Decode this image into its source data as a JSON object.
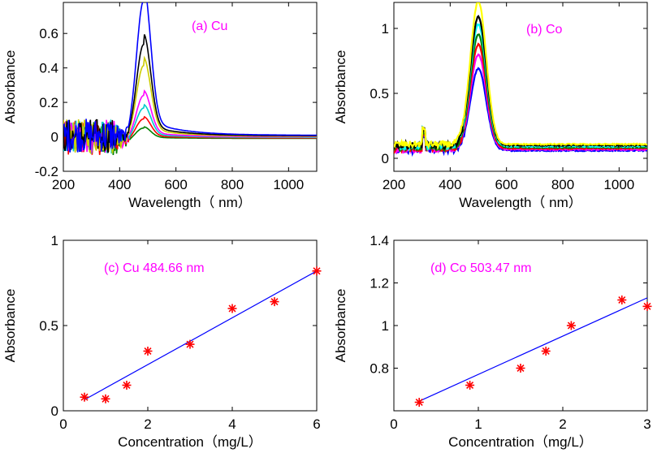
{
  "figure": {
    "panels": [
      "panel_a",
      "panel_b",
      "panel_c",
      "panel_d"
    ]
  },
  "chart_data": [
    {
      "id": "panel_a",
      "type": "line",
      "annotation": "(a)  Cu",
      "xlabel": "Wavelength（ nm）",
      "ylabel": "Absorbance",
      "xlim": [
        200,
        1100
      ],
      "ylim": [
        -0.2,
        0.78
      ],
      "xticks": [
        200,
        400,
        600,
        800,
        1000
      ],
      "yticks": [
        -0.2,
        0,
        0.2,
        0.4,
        0.6
      ],
      "ytick_labels": [
        "-0.2",
        "0",
        "0.2",
        "0.4",
        "0.6"
      ],
      "peak_wavelength": 485,
      "peak_width": 35,
      "series": [
        {
          "name": "s1",
          "color": "#008000",
          "peak": 0.06
        },
        {
          "name": "s2",
          "color": "#ff0000",
          "peak": 0.11
        },
        {
          "name": "s3",
          "color": "#00cccc",
          "peak": 0.17
        },
        {
          "name": "s4",
          "color": "#ff00ff",
          "peak": 0.24
        },
        {
          "name": "s5",
          "color": "#cccc00",
          "peak": 0.41
        },
        {
          "name": "s6",
          "color": "#000000",
          "peak": 0.53
        },
        {
          "name": "s7",
          "color": "#0000ff",
          "peak": 0.78
        }
      ]
    },
    {
      "id": "panel_b",
      "type": "line",
      "annotation": "(b)  Co",
      "xlabel": "Wavelength（ nm）",
      "ylabel": "Absorbance",
      "xlim": [
        200,
        1100
      ],
      "ylim": [
        -0.1,
        1.2
      ],
      "xticks": [
        200,
        400,
        600,
        800,
        1000
      ],
      "yticks": [
        0,
        0.5,
        1
      ],
      "ytick_labels": [
        "0",
        "0.5",
        "1"
      ],
      "peak_wavelength": 500,
      "peak_width": 40,
      "series": [
        {
          "name": "s1",
          "color": "#0000ff",
          "peak": 0.63
        },
        {
          "name": "s2",
          "color": "#ff00ff",
          "peak": 0.73
        },
        {
          "name": "s3",
          "color": "#ff0000",
          "peak": 0.8
        },
        {
          "name": "s4",
          "color": "#008000",
          "peak": 0.87
        },
        {
          "name": "s5",
          "color": "#00ffff",
          "peak": 0.94
        },
        {
          "name": "s6",
          "color": "#000000",
          "peak": 0.99
        },
        {
          "name": "s7",
          "color": "#ffff00",
          "peak": 1.1
        }
      ]
    },
    {
      "id": "panel_c",
      "type": "scatter",
      "annotation": "(c) Cu   484.66 nm",
      "xlabel": "Concentration（mg/L）",
      "ylabel": "Absorbance",
      "xlim": [
        0,
        6
      ],
      "ylim": [
        0,
        1
      ],
      "xticks": [
        0,
        2,
        4,
        6
      ],
      "yticks": [
        0,
        0.5,
        1
      ],
      "ytick_labels": [
        "0",
        "0.5",
        "1"
      ],
      "x": [
        0.5,
        1,
        1.5,
        2,
        3,
        4,
        5,
        6
      ],
      "y": [
        0.08,
        0.07,
        0.15,
        0.35,
        0.39,
        0.6,
        0.64,
        0.82
      ],
      "fit": [
        [
          0.5,
          0.065
        ],
        [
          6,
          0.82
        ]
      ],
      "marker_color": "#ff0000",
      "fit_color": "#0000ff"
    },
    {
      "id": "panel_d",
      "type": "scatter",
      "annotation": "(d) Co  503.47 nm",
      "xlabel": "Concentration（mg/L）",
      "ylabel": "Absorbance",
      "xlim": [
        0,
        3
      ],
      "ylim": [
        0.6,
        1.4
      ],
      "xticks": [
        0,
        1,
        2,
        3
      ],
      "yticks": [
        0.8,
        1,
        1.2,
        1.4
      ],
      "ytick_labels": [
        "0.8",
        "1",
        "1.2",
        "1.4"
      ],
      "x": [
        0.3,
        0.9,
        1.5,
        1.8,
        2.1,
        2.7,
        3.0
      ],
      "y": [
        0.64,
        0.72,
        0.8,
        0.88,
        1.0,
        1.12,
        1.09
      ],
      "fit": [
        [
          0.3,
          0.645
        ],
        [
          3.0,
          1.13
        ]
      ],
      "marker_color": "#ff0000",
      "fit_color": "#0000ff"
    }
  ]
}
